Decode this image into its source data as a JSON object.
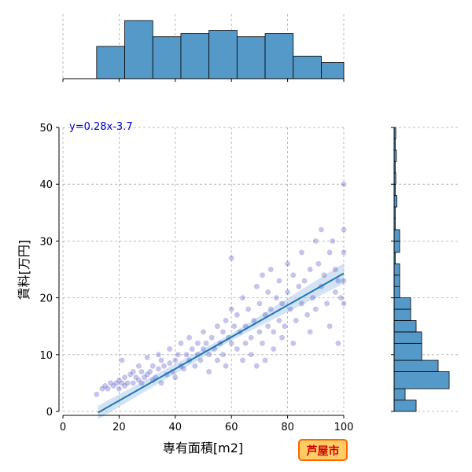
{
  "chart_data": {
    "type": "scatter",
    "xlabel": "専有面積[m2]",
    "ylabel": "賃料[万円]",
    "xlim": [
      0,
      100
    ],
    "ylim": [
      0,
      50
    ],
    "x_ticks": [
      0,
      20,
      40,
      60,
      80,
      100
    ],
    "y_ticks": [
      0,
      10,
      20,
      30,
      40,
      50
    ],
    "grid": true,
    "annotation": "y=0.28x-3.7",
    "regression": {
      "slope": 0.28,
      "intercept": -3.7,
      "x_range": [
        12.5,
        100
      ]
    },
    "badge": "芦屋市",
    "colors": {
      "point": "#3333bb",
      "line": "#1f77b4",
      "band": "#a8c8e8",
      "hist": "#5599c8",
      "badge_fill": "#ffcc66",
      "badge_border": "#ff6600"
    },
    "points": [
      [
        12,
        3
      ],
      [
        14,
        4
      ],
      [
        15,
        4.5
      ],
      [
        16,
        4
      ],
      [
        17,
        5
      ],
      [
        18,
        4.5
      ],
      [
        19,
        5
      ],
      [
        20,
        5.5
      ],
      [
        20,
        4
      ],
      [
        21,
        5
      ],
      [
        21,
        9
      ],
      [
        22,
        6
      ],
      [
        22,
        4.5
      ],
      [
        23,
        5
      ],
      [
        24,
        6.5
      ],
      [
        25,
        5
      ],
      [
        25,
        7
      ],
      [
        26,
        6
      ],
      [
        27,
        5.5
      ],
      [
        27,
        8
      ],
      [
        28,
        7
      ],
      [
        28,
        5
      ],
      [
        29,
        6
      ],
      [
        30,
        6.5
      ],
      [
        30,
        9.5
      ],
      [
        31,
        7
      ],
      [
        32,
        5.5
      ],
      [
        32,
        8
      ],
      [
        33,
        6
      ],
      [
        34,
        7.5
      ],
      [
        34,
        10
      ],
      [
        35,
        5
      ],
      [
        35,
        9
      ],
      [
        36,
        8
      ],
      [
        37,
        6.5
      ],
      [
        38,
        8.5
      ],
      [
        38,
        11
      ],
      [
        39,
        7
      ],
      [
        40,
        9
      ],
      [
        40,
        6
      ],
      [
        41,
        10
      ],
      [
        42,
        8
      ],
      [
        42,
        12
      ],
      [
        43,
        7.5
      ],
      [
        44,
        10
      ],
      [
        45,
        9
      ],
      [
        45,
        13
      ],
      [
        46,
        11
      ],
      [
        47,
        8
      ],
      [
        48,
        12
      ],
      [
        48,
        10
      ],
      [
        49,
        9
      ],
      [
        50,
        11
      ],
      [
        50,
        14
      ],
      [
        51,
        12
      ],
      [
        52,
        10
      ],
      [
        52,
        7
      ],
      [
        53,
        13
      ],
      [
        54,
        11
      ],
      [
        55,
        15
      ],
      [
        55,
        9
      ],
      [
        56,
        12
      ],
      [
        57,
        14
      ],
      [
        57,
        10
      ],
      [
        58,
        16
      ],
      [
        58,
        8
      ],
      [
        59,
        13
      ],
      [
        60,
        12
      ],
      [
        60,
        18
      ],
      [
        60,
        27
      ],
      [
        61,
        15
      ],
      [
        62,
        11
      ],
      [
        62,
        17
      ],
      [
        63,
        14
      ],
      [
        64,
        9
      ],
      [
        64,
        20
      ],
      [
        65,
        15
      ],
      [
        65,
        12
      ],
      [
        66,
        18
      ],
      [
        67,
        13
      ],
      [
        67,
        10
      ],
      [
        68,
        16
      ],
      [
        69,
        22
      ],
      [
        69,
        8
      ],
      [
        70,
        14
      ],
      [
        70,
        19
      ],
      [
        71,
        24
      ],
      [
        71,
        12
      ],
      [
        72,
        17
      ],
      [
        72,
        9
      ],
      [
        73,
        15
      ],
      [
        73,
        21
      ],
      [
        74,
        18
      ],
      [
        74,
        25
      ],
      [
        75,
        14
      ],
      [
        75,
        11
      ],
      [
        76,
        20
      ],
      [
        77,
        16
      ],
      [
        77,
        23
      ],
      [
        78,
        19
      ],
      [
        78,
        13
      ],
      [
        79,
        15
      ],
      [
        80,
        21
      ],
      [
        80,
        26
      ],
      [
        81,
        18
      ],
      [
        82,
        24
      ],
      [
        82,
        12
      ],
      [
        83,
        16
      ],
      [
        84,
        22
      ],
      [
        85,
        19
      ],
      [
        85,
        28
      ],
      [
        86,
        23
      ],
      [
        87,
        17
      ],
      [
        88,
        25
      ],
      [
        88,
        14
      ],
      [
        89,
        20
      ],
      [
        90,
        30
      ],
      [
        90,
        18
      ],
      [
        91,
        26
      ],
      [
        92,
        32
      ],
      [
        92,
        22
      ],
      [
        93,
        24
      ],
      [
        94,
        19
      ],
      [
        95,
        28
      ],
      [
        95,
        15
      ],
      [
        96,
        30
      ],
      [
        97,
        21
      ],
      [
        97,
        25
      ],
      [
        98,
        23
      ],
      [
        98,
        12
      ],
      [
        99,
        20
      ],
      [
        100,
        40
      ],
      [
        100,
        32
      ],
      [
        100,
        28
      ],
      [
        100,
        23
      ],
      [
        100,
        19
      ]
    ],
    "hist_x": {
      "bins": [
        [
          0,
          12,
          0
        ],
        [
          12,
          22,
          10
        ],
        [
          22,
          32,
          18
        ],
        [
          32,
          42,
          13
        ],
        [
          42,
          52,
          14
        ],
        [
          52,
          62,
          15
        ],
        [
          62,
          72,
          13
        ],
        [
          72,
          82,
          14
        ],
        [
          82,
          92,
          7
        ],
        [
          92,
          100,
          5
        ]
      ],
      "count_max": 20
    },
    "hist_y": {
      "bins": [
        [
          0,
          2,
          4
        ],
        [
          2,
          4,
          2
        ],
        [
          4,
          7,
          10
        ],
        [
          7,
          9,
          8
        ],
        [
          9,
          12,
          5
        ],
        [
          12,
          14,
          5
        ],
        [
          14,
          16,
          4
        ],
        [
          16,
          18,
          3
        ],
        [
          18,
          20,
          3
        ],
        [
          20,
          22,
          1
        ],
        [
          22,
          24,
          1
        ],
        [
          24,
          26,
          1
        ],
        [
          26,
          28,
          0.2
        ],
        [
          28,
          30,
          1
        ],
        [
          30,
          32,
          1
        ],
        [
          32,
          34,
          0.2
        ],
        [
          34,
          36,
          0.2
        ],
        [
          36,
          38,
          0.5
        ],
        [
          38,
          40,
          0.2
        ],
        [
          40,
          42,
          0.3
        ],
        [
          42,
          44,
          0.2
        ],
        [
          44,
          46,
          0.4
        ],
        [
          46,
          48,
          0.2
        ],
        [
          48,
          50,
          0.3
        ]
      ],
      "count_max": 12
    }
  }
}
